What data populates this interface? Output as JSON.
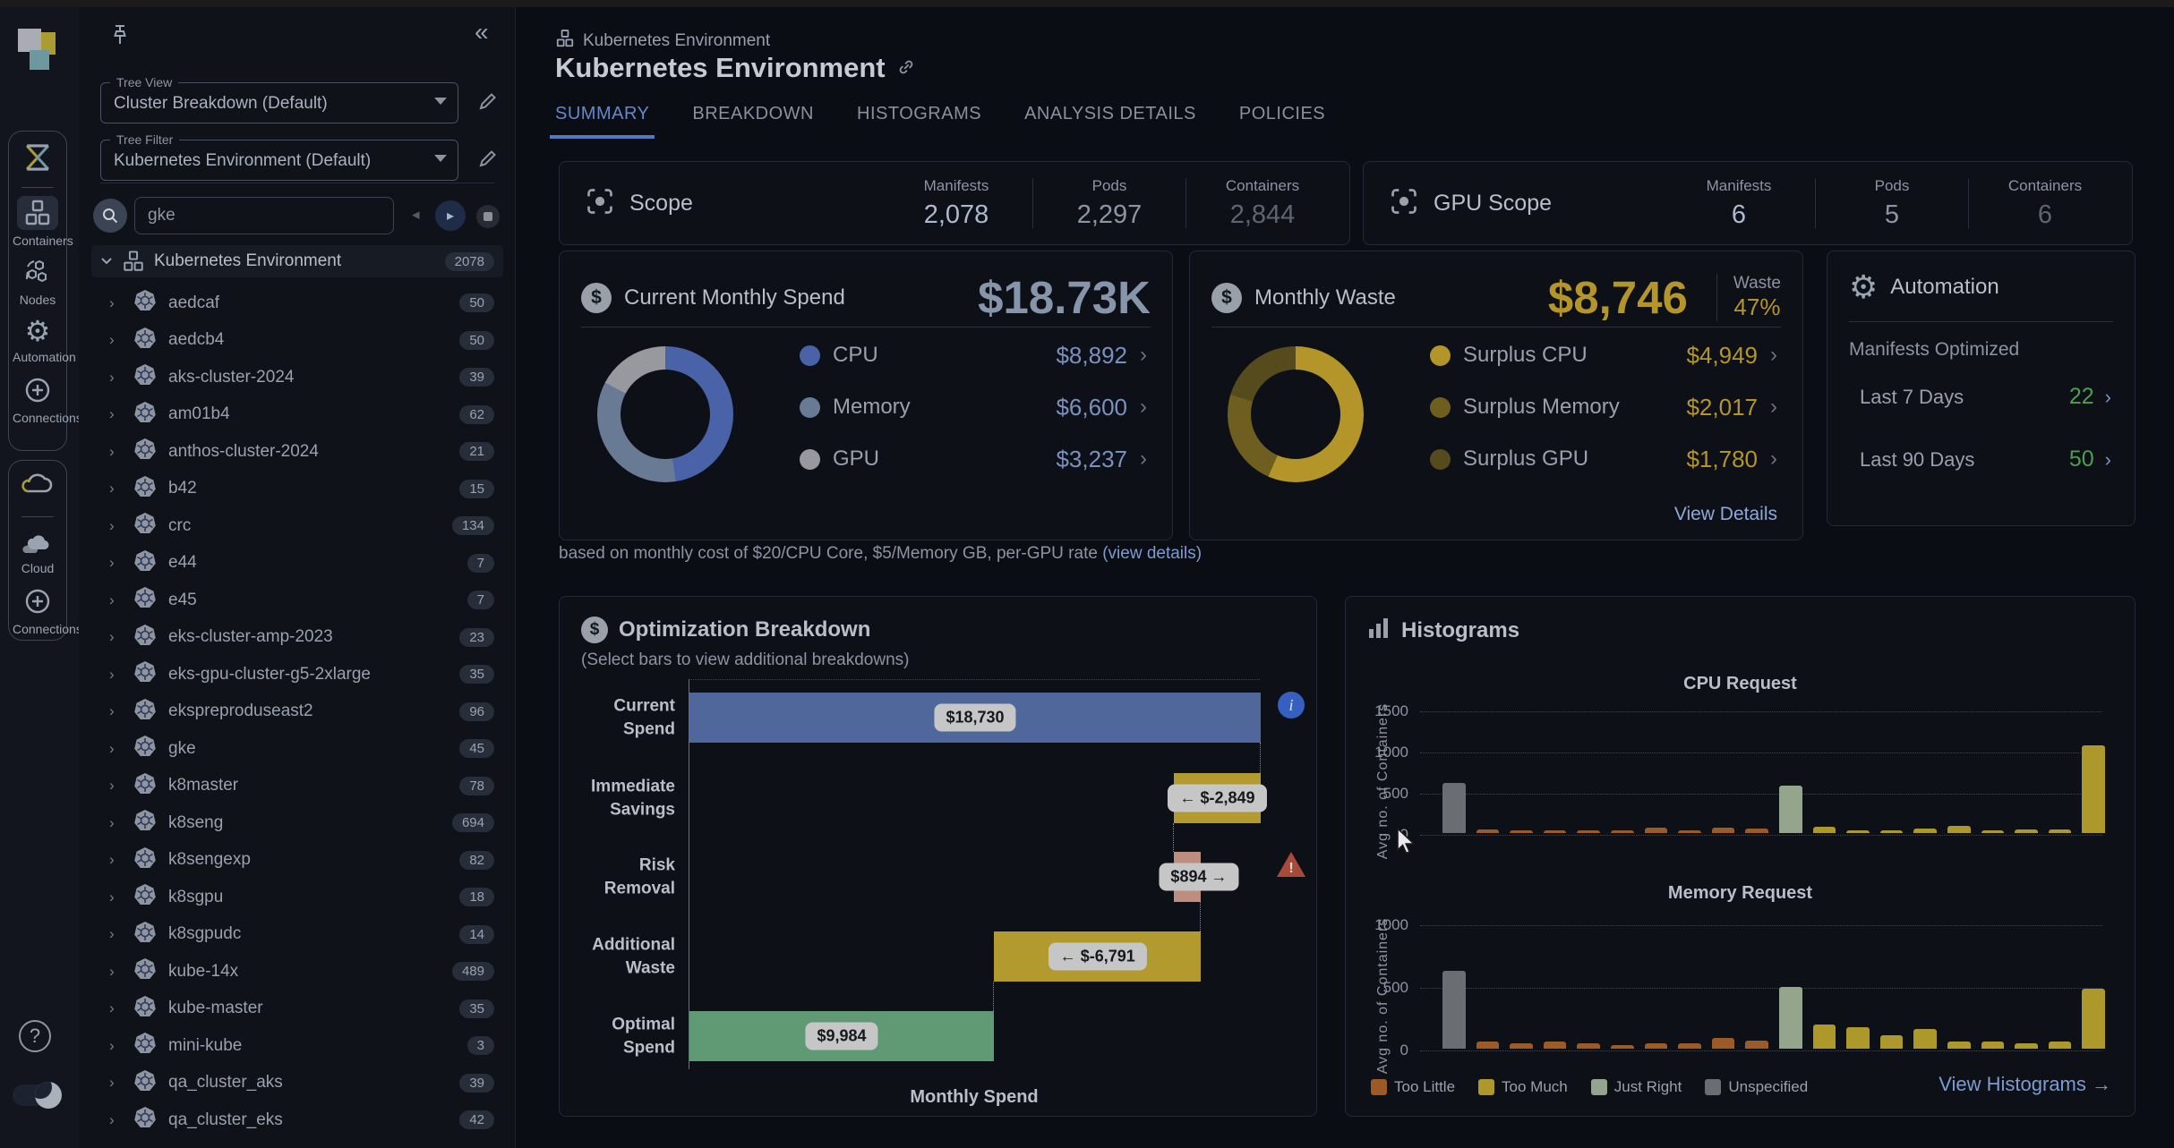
{
  "rail": {
    "groups": [
      {
        "icon": "containers-app",
        "items": [
          {
            "label": "Containers",
            "icon": "cubes",
            "selected": true
          },
          {
            "label": "Nodes",
            "icon": "nodes",
            "selected": false
          },
          {
            "label": "Automation",
            "icon": "gear",
            "selected": false
          },
          {
            "label": "Connections",
            "icon": "plus-circle",
            "selected": false
          }
        ]
      },
      {
        "icon": "cloud-app",
        "items": [
          {
            "label": "Cloud",
            "icon": "clouds",
            "selected": false
          },
          {
            "label": "Connections",
            "icon": "plus-circle",
            "selected": false
          }
        ]
      }
    ]
  },
  "sidebar": {
    "tree_view": {
      "label": "Tree View",
      "value": "Cluster Breakdown (Default)"
    },
    "tree_filter": {
      "label": "Tree Filter",
      "value": "Kubernetes Environment (Default)"
    },
    "search": {
      "value": "gke"
    },
    "tree": {
      "root": {
        "name": "Kubernetes Environment",
        "count": "2078"
      },
      "items": [
        {
          "name": "aedcaf",
          "count": "50"
        },
        {
          "name": "aedcb4",
          "count": "50"
        },
        {
          "name": "aks-cluster-2024",
          "count": "39"
        },
        {
          "name": "am01b4",
          "count": "62"
        },
        {
          "name": "anthos-cluster-2024",
          "count": "21"
        },
        {
          "name": "b42",
          "count": "15"
        },
        {
          "name": "crc",
          "count": "134"
        },
        {
          "name": "e44",
          "count": "7"
        },
        {
          "name": "e45",
          "count": "7"
        },
        {
          "name": "eks-cluster-amp-2023",
          "count": "23"
        },
        {
          "name": "eks-gpu-cluster-g5-2xlarge",
          "count": "35"
        },
        {
          "name": "ekspreproduseast2",
          "count": "96"
        },
        {
          "name": "gke",
          "count": "45"
        },
        {
          "name": "k8master",
          "count": "78"
        },
        {
          "name": "k8seng",
          "count": "694"
        },
        {
          "name": "k8sengexp",
          "count": "82"
        },
        {
          "name": "k8sgpu",
          "count": "18"
        },
        {
          "name": "k8sgpudc",
          "count": "14"
        },
        {
          "name": "kube-14x",
          "count": "489"
        },
        {
          "name": "kube-master",
          "count": "35"
        },
        {
          "name": "mini-kube",
          "count": "3"
        },
        {
          "name": "qa_cluster_aks",
          "count": "39"
        },
        {
          "name": "qa_cluster_eks",
          "count": "42"
        }
      ]
    }
  },
  "header": {
    "breadcrumb": "Kubernetes Environment",
    "title": "Kubernetes Environment",
    "tabs": [
      "SUMMARY",
      "BREAKDOWN",
      "HISTOGRAMS",
      "ANALYSIS DETAILS",
      "POLICIES"
    ],
    "active_tab": "SUMMARY"
  },
  "scope": {
    "title": "Scope",
    "stats": [
      {
        "label": "Manifests",
        "value": "2,078"
      },
      {
        "label": "Pods",
        "value": "2,297"
      },
      {
        "label": "Containers",
        "value": "2,844"
      }
    ]
  },
  "gpu_scope": {
    "title": "GPU Scope",
    "stats": [
      {
        "label": "Manifests",
        "value": "6"
      },
      {
        "label": "Pods",
        "value": "5"
      },
      {
        "label": "Containers",
        "value": "6"
      }
    ]
  },
  "spend": {
    "title": "Current Monthly Spend",
    "total": "$18.73K",
    "rows": [
      {
        "label": "CPU",
        "value": "$8,892"
      },
      {
        "label": "Memory",
        "value": "$6,600"
      },
      {
        "label": "GPU",
        "value": "$3,237"
      }
    ]
  },
  "waste": {
    "title": "Monthly Waste",
    "total": "$8,746",
    "waste_label": "Waste",
    "waste_pct": "47%",
    "rows": [
      {
        "label": "Surplus CPU",
        "value": "$4,949"
      },
      {
        "label": "Surplus Memory",
        "value": "$2,017"
      },
      {
        "label": "Surplus GPU",
        "value": "$1,780"
      }
    ],
    "link": "View Details"
  },
  "automation": {
    "title": "Automation",
    "subtitle": "Manifests Optimized",
    "rows": [
      {
        "label": "Last 7 Days",
        "value": "22"
      },
      {
        "label": "Last 90 Days",
        "value": "50"
      }
    ]
  },
  "note": {
    "text": "based on monthly cost of $20/CPU Core, $5/Memory GB, per-GPU rate ",
    "link": "(view details)"
  },
  "optimization": {
    "title": "Optimization Breakdown",
    "subtitle": "(Select bars to view additional breakdowns)"
  },
  "histograms": {
    "panel_title": "Histograms",
    "legend": [
      {
        "key": "too_little",
        "label": "Too Little",
        "color": "#9c5a26"
      },
      {
        "key": "too_much",
        "label": "Too Much",
        "color": "#ad982c"
      },
      {
        "key": "just_right",
        "label": "Just Right",
        "color": "#95a48d"
      },
      {
        "key": "unspecified",
        "label": "Unspecified",
        "color": "#6a6d72"
      }
    ],
    "link": "View Histograms →"
  },
  "chart_data": [
    {
      "id": "spend_donut",
      "type": "pie",
      "title": "Current Monthly Spend",
      "labels": [
        "CPU",
        "Memory",
        "GPU"
      ],
      "values": [
        8892,
        6600,
        3237
      ],
      "colors": [
        "#4a63a8",
        "#697a94",
        "#97999e"
      ]
    },
    {
      "id": "waste_donut",
      "type": "pie",
      "title": "Monthly Waste",
      "labels": [
        "Surplus CPU",
        "Surplus Memory",
        "Surplus GPU"
      ],
      "values": [
        4949,
        2017,
        1780
      ],
      "colors": [
        "#b3952a",
        "#6e5f20",
        "#554b1d"
      ]
    },
    {
      "id": "optimization_waterfall",
      "type": "bar",
      "orientation": "horizontal",
      "title": "Optimization Breakdown",
      "xlabel": "Monthly Spend",
      "xmax": 18730,
      "categories": [
        "Current Spend",
        "Immediate Savings",
        "Risk Removal",
        "Additional Waste",
        "Optimal Spend"
      ],
      "bars": [
        {
          "label": "$18,730",
          "start": 0,
          "end": 18730,
          "color": "#50679c",
          "chip_at": "center"
        },
        {
          "label": "← $-2,849",
          "start": 15881,
          "end": 18730,
          "color": "#b39a2e",
          "chip_at": "center"
        },
        {
          "label": "$894 →",
          "start": 15881,
          "end": 16775,
          "color": "#bd8d7f",
          "chip_at": "start"
        },
        {
          "label": "← $-6,791",
          "start": 9984,
          "end": 16775,
          "color": "#b39a2e",
          "chip_at": "center"
        },
        {
          "label": "$9,984",
          "start": 0,
          "end": 9984,
          "color": "#5f9a74",
          "chip_at": "center"
        }
      ],
      "connectors": [
        18730,
        15881,
        16775,
        9984
      ]
    },
    {
      "id": "cpu_hist",
      "type": "bar",
      "title": "CPU Request",
      "ylabel": "Avg no. of Containers",
      "yticks": [
        0,
        500,
        1000,
        1500
      ],
      "grid": "dotted",
      "values": [
        610,
        40,
        5,
        5,
        15,
        30,
        65,
        30,
        65,
        50,
        580,
        75,
        20,
        35,
        55,
        90,
        20,
        40,
        40,
        1060
      ],
      "classes": [
        "unspecified",
        "too_little",
        "too_little",
        "too_little",
        "too_little",
        "too_little",
        "too_little",
        "too_little",
        "too_little",
        "too_little",
        "just_right",
        "too_much",
        "too_much",
        "too_much",
        "too_much",
        "too_much",
        "too_much",
        "too_much",
        "too_much",
        "too_much"
      ]
    },
    {
      "id": "mem_hist",
      "type": "bar",
      "title": "Memory Request",
      "ylabel": "Avg no. of Containers",
      "yticks": [
        0,
        500,
        1000
      ],
      "grid": "dotted",
      "values": [
        620,
        60,
        45,
        55,
        40,
        30,
        45,
        45,
        85,
        65,
        490,
        195,
        175,
        110,
        160,
        55,
        55,
        45,
        55,
        480
      ],
      "classes": [
        "unspecified",
        "too_little",
        "too_little",
        "too_little",
        "too_little",
        "too_little",
        "too_little",
        "too_little",
        "too_little",
        "too_little",
        "just_right",
        "too_much",
        "too_much",
        "too_much",
        "too_much",
        "too_much",
        "too_much",
        "too_much",
        "too_much",
        "too_much"
      ]
    }
  ]
}
